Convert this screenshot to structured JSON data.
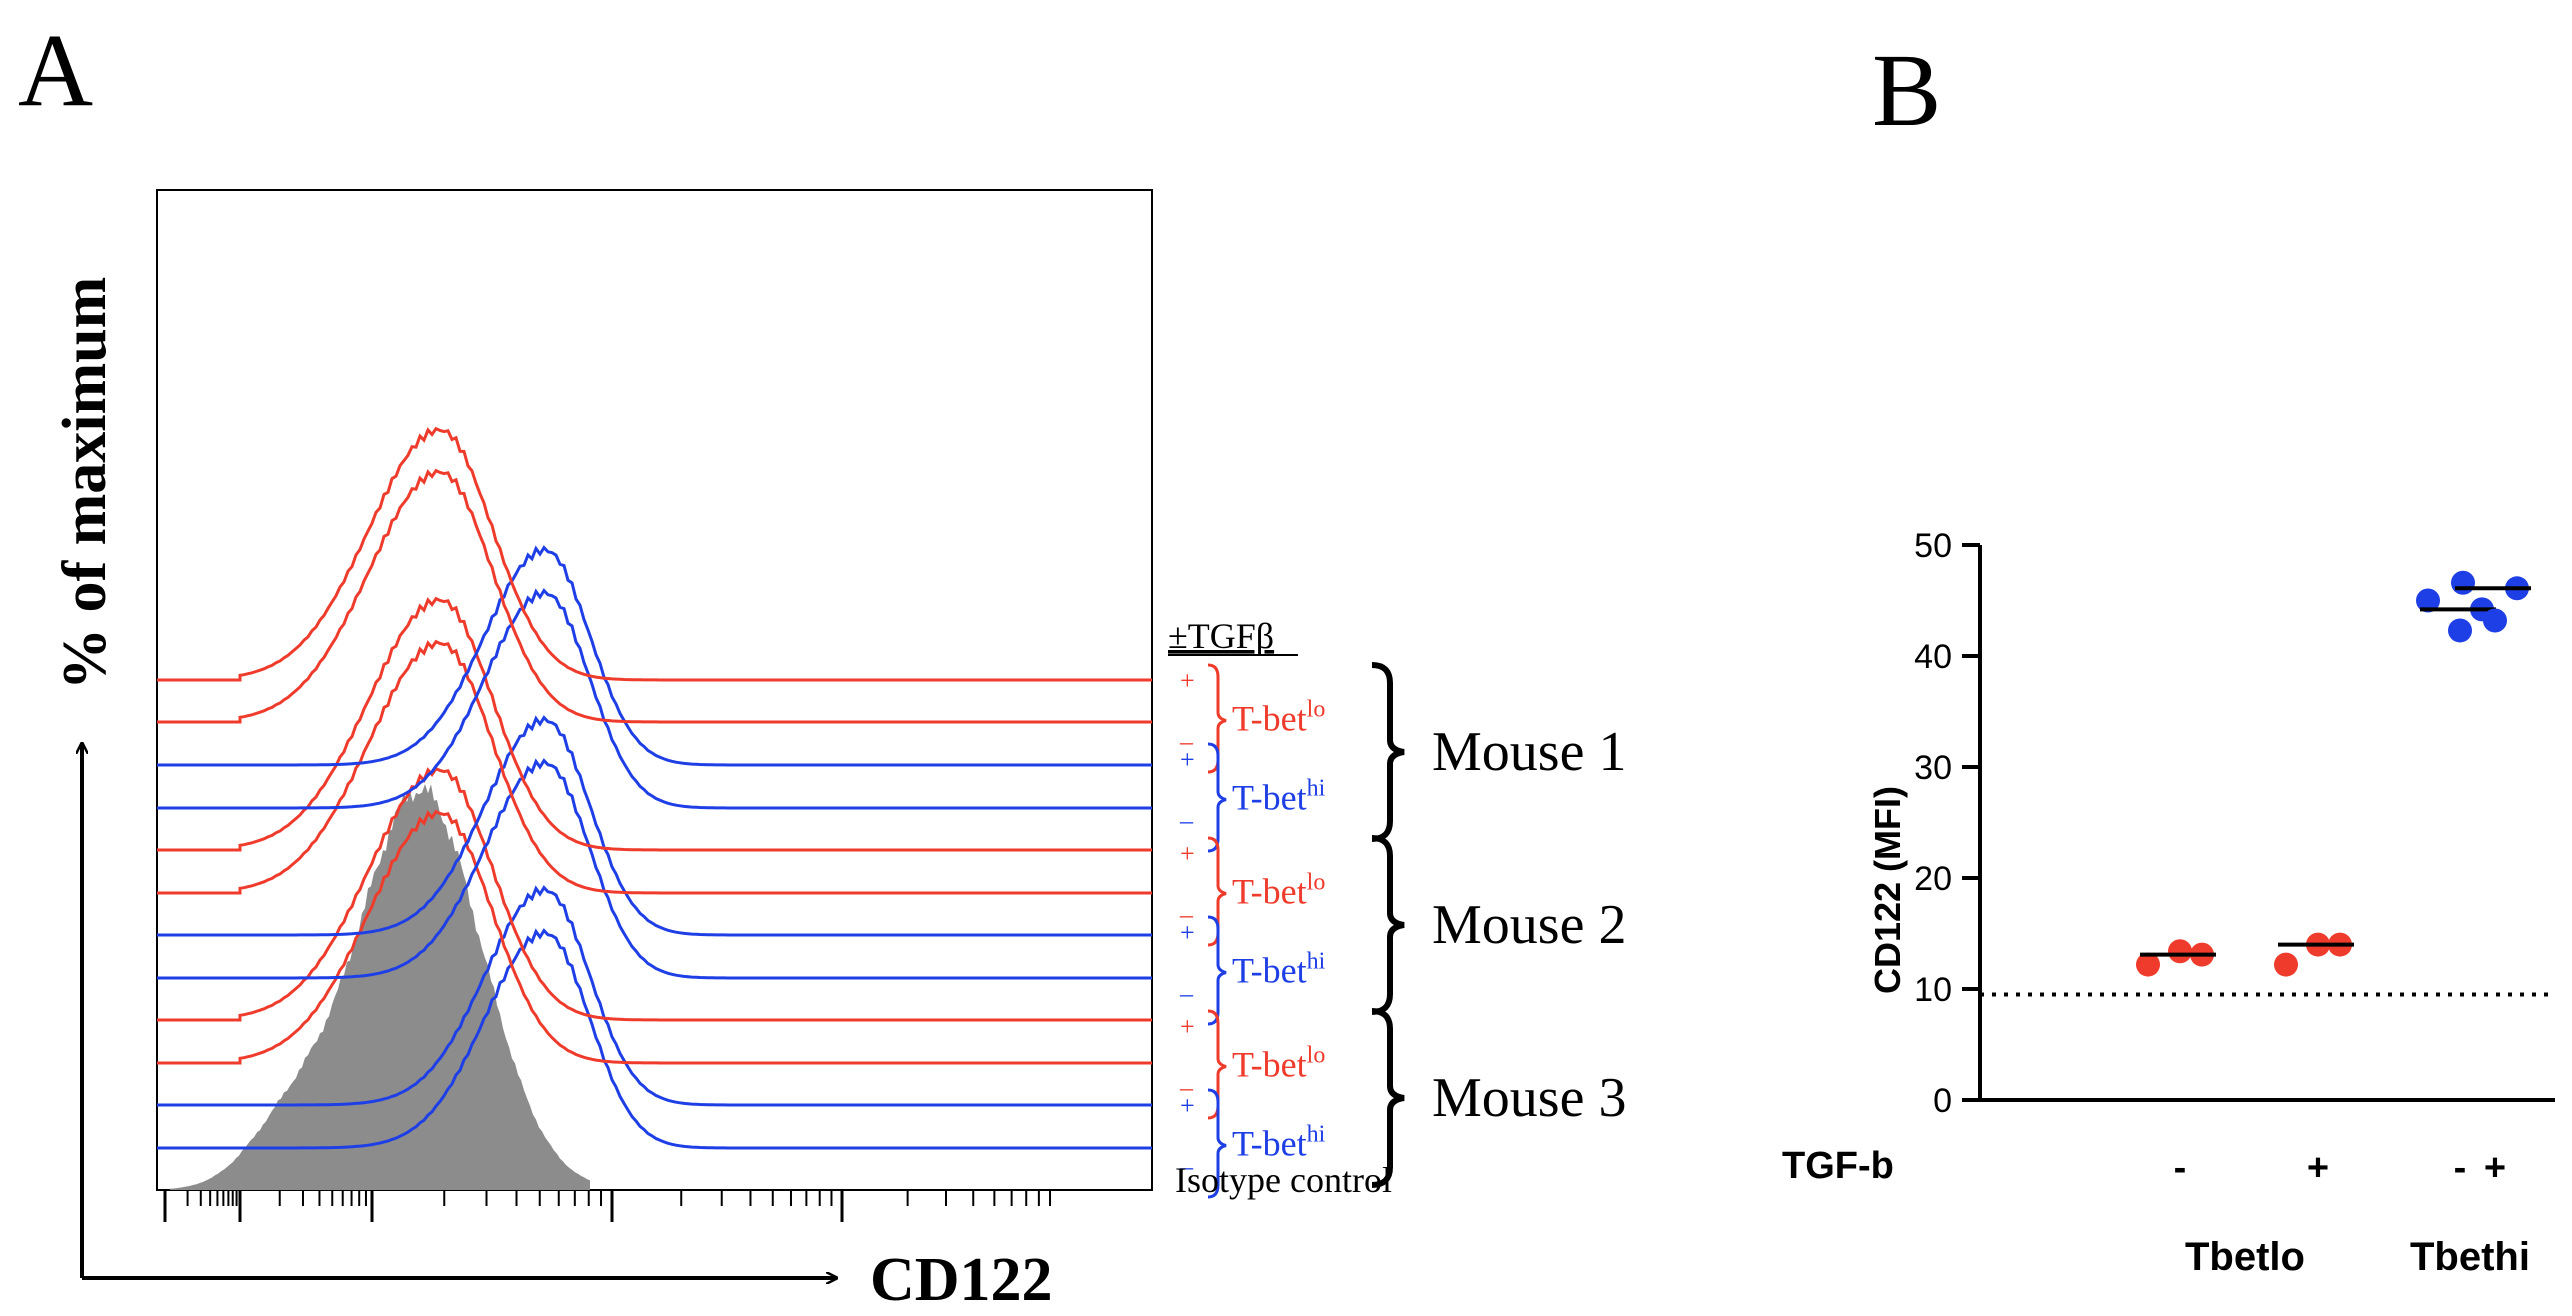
{
  "chart_data": [
    {
      "type": "histogram_overlay",
      "panel_label": "A",
      "xlabel": "CD122",
      "ylabel": "% of maximum",
      "treatment_header": "±TGFβ",
      "isotype_label": "Isotype control",
      "mice": [
        {
          "name": "Mouse 1",
          "groups": [
            {
              "label": "T-bet",
              "sup": "lo",
              "color": "#ef3b2c",
              "signs": [
                "+",
                "–"
              ]
            },
            {
              "label": "T-bet",
              "sup": "hi",
              "color": "#1f3fe6",
              "signs": [
                "+",
                "–"
              ]
            }
          ]
        },
        {
          "name": "Mouse 2",
          "groups": [
            {
              "label": "T-bet",
              "sup": "lo",
              "color": "#ef3b2c",
              "signs": [
                "+",
                "–"
              ]
            },
            {
              "label": "T-bet",
              "sup": "hi",
              "color": "#1f3fe6",
              "signs": [
                "+",
                "–"
              ]
            }
          ]
        },
        {
          "name": "Mouse 3",
          "groups": [
            {
              "label": "T-bet",
              "sup": "lo",
              "color": "#ef3b2c",
              "signs": [
                "+",
                "–"
              ]
            },
            {
              "label": "T-bet",
              "sup": "hi",
              "color": "#1f3fe6",
              "signs": [
                "+",
                "–"
              ]
            }
          ]
        }
      ],
      "isotype_color": "#8c8c8c"
    },
    {
      "type": "scatter",
      "panel_label": "B",
      "ylabel": "CD122 (MFI)",
      "ylim": [
        0,
        50
      ],
      "yticks": [
        0,
        10,
        20,
        30,
        40,
        50
      ],
      "reference_line": 9.5,
      "row_label": "TGF-b",
      "categories": [
        "-",
        "+",
        "-",
        "+"
      ],
      "group_labels": [
        "Tbetlo",
        "Tbethi"
      ],
      "series": [
        {
          "name": "Tbetlo -",
          "color": "#ef3b2c",
          "values": [
            12.2,
            13.4,
            13.1
          ],
          "median": 13.1
        },
        {
          "name": "Tbetlo +",
          "color": "#ef3b2c",
          "values": [
            12.2,
            14.0,
            14.0
          ],
          "median": 14.0
        },
        {
          "name": "Tbethi -",
          "color": "#1f3fe6",
          "values": [
            45.0,
            42.3,
            44.2
          ],
          "median": 44.2
        },
        {
          "name": "Tbethi +",
          "color": "#1f3fe6",
          "values": [
            46.6,
            43.2,
            46.1
          ],
          "median": 46.1
        }
      ]
    }
  ]
}
